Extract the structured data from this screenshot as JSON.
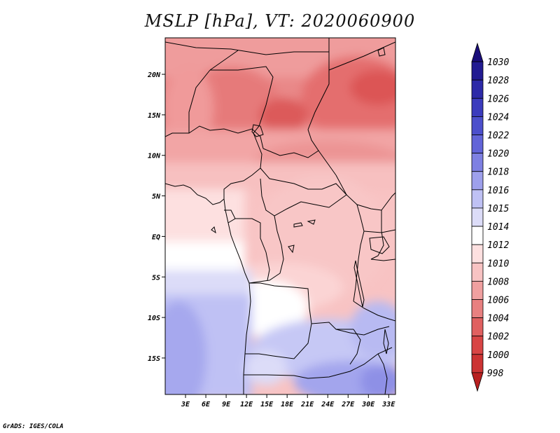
{
  "title": "MSLP [hPa], VT: 2020060900",
  "credit": "GrADS: IGES/COLA",
  "map": {
    "lat_labels": [
      "20N",
      "15N",
      "10N",
      "5N",
      "EQ",
      "5S",
      "10S",
      "15S"
    ],
    "lat_values": [
      20,
      15,
      10,
      5,
      0,
      -5,
      -10,
      -15
    ],
    "lon_labels": [
      "3E",
      "6E",
      "9E",
      "12E",
      "15E",
      "18E",
      "21E",
      "24E",
      "27E",
      "30E",
      "33E"
    ],
    "lon_values": [
      3,
      6,
      9,
      12,
      15,
      18,
      21,
      24,
      27,
      30,
      33
    ],
    "lat_range": [
      -19.5,
      24.5
    ],
    "lon_range": [
      0,
      34
    ]
  },
  "colorbar": {
    "levels": [
      "1030",
      "1028",
      "1026",
      "1024",
      "1022",
      "1020",
      "1018",
      "1016",
      "1015",
      "1014",
      "1012",
      "1010",
      "1008",
      "1006",
      "1004",
      "1002",
      "1000",
      "998"
    ],
    "colors": [
      "#1a0d7a",
      "#221b92",
      "#2d2aa8",
      "#3b3bbd",
      "#4c4fcc",
      "#6264d8",
      "#7e80e2",
      "#9ea0ec",
      "#bfc1f4",
      "#dcdcf8",
      "#ffffff",
      "#fde0e0",
      "#f8c3c3",
      "#f0a0a0",
      "#e88080",
      "#e06060",
      "#d84545",
      "#cc3333",
      "#b82020"
    ]
  }
}
